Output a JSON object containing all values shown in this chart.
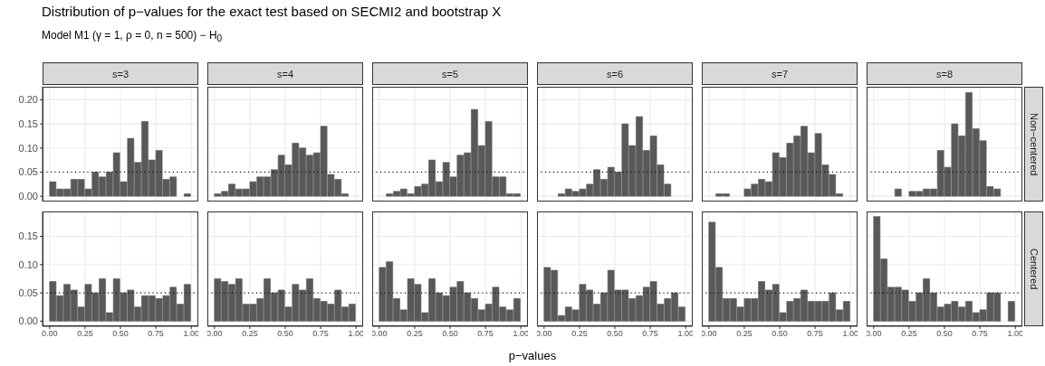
{
  "chart_data": [
    {
      "type": "other",
      "title": "Distribution of p−values for the exact test based on SECMI2 and bootstrap X",
      "subtitle": "Model M1 (γ = 1, ρ = 0, n = 500) − H$_{0}$"
    },
    {
      "type": "histogram",
      "title": "s=3",
      "tick_labels": "y",
      "bins": [
        0,
        0.05,
        0.1,
        0.15,
        0.2,
        0.25,
        0.3,
        0.35,
        0.4,
        0.45,
        0.5,
        0.55,
        0.6,
        0.65,
        0.7,
        0.75,
        0.8,
        0.85,
        0.9,
        0.95,
        1
      ],
      "values": [
        0.03,
        0.015,
        0.015,
        0.035,
        0.035,
        0.015,
        0.05,
        0.04,
        0.05,
        0.09,
        0.03,
        0.12,
        0.07,
        0.155,
        0.075,
        0.095,
        0.035,
        0.04,
        0,
        0.005
      ],
      "color": "#595959",
      "xlim": [
        -0.05,
        1.05
      ],
      "xticks": [
        0,
        0.25,
        0.5,
        0.75,
        1
      ],
      "ylim": [
        -0.011,
        0.227
      ],
      "yticks": [
        {
          "value": 0,
          "label": "0.00"
        },
        {
          "value": 0.05,
          "label": "0.05"
        },
        {
          "value": 0.1,
          "label": "0.10"
        },
        {
          "value": 0.15,
          "label": "0.15"
        },
        {
          "value": 0.2,
          "label": "0.20"
        }
      ],
      "grid": true,
      "ref_lines": [
        {
          "axis": "y",
          "value": 0.05,
          "line_style": "dotted",
          "color": "#000000"
        }
      ]
    },
    {
      "type": "histogram",
      "title": "s=4",
      "tick_labels": false,
      "bins": [
        0,
        0.05,
        0.1,
        0.15,
        0.2,
        0.25,
        0.3,
        0.35,
        0.4,
        0.45,
        0.5,
        0.55,
        0.6,
        0.65,
        0.7,
        0.75,
        0.8,
        0.85,
        0.9,
        0.95,
        1
      ],
      "values": [
        0.005,
        0.01,
        0.025,
        0.015,
        0.015,
        0.03,
        0.04,
        0.04,
        0.055,
        0.085,
        0.065,
        0.11,
        0.1,
        0.085,
        0.09,
        0.145,
        0.045,
        0.035,
        0.005,
        0
      ],
      "color": "#595959",
      "xlim": [
        -0.05,
        1.05
      ],
      "xticks": [
        0,
        0.25,
        0.5,
        0.75,
        1
      ],
      "ylim": [
        -0.011,
        0.227
      ],
      "yticks": [
        0,
        0.05,
        0.1,
        0.15,
        0.2
      ],
      "grid": true,
      "ref_lines": [
        {
          "axis": "y",
          "value": 0.05,
          "line_style": "dotted",
          "color": "#000000"
        }
      ]
    },
    {
      "type": "histogram",
      "title": "s=5",
      "tick_labels": false,
      "bins": [
        0,
        0.05,
        0.1,
        0.15,
        0.2,
        0.25,
        0.3,
        0.35,
        0.4,
        0.45,
        0.5,
        0.55,
        0.6,
        0.65,
        0.7,
        0.75,
        0.8,
        0.85,
        0.9,
        0.95,
        1
      ],
      "values": [
        0,
        0.005,
        0.01,
        0.015,
        0.005,
        0.02,
        0.025,
        0.075,
        0.03,
        0.07,
        0.04,
        0.085,
        0.09,
        0.18,
        0.105,
        0.155,
        0.04,
        0.04,
        0.005,
        0.005
      ],
      "color": "#595959",
      "xlim": [
        -0.05,
        1.05
      ],
      "xticks": [
        0,
        0.25,
        0.5,
        0.75,
        1
      ],
      "ylim": [
        -0.011,
        0.227
      ],
      "yticks": [
        0,
        0.05,
        0.1,
        0.15,
        0.2
      ],
      "grid": true,
      "ref_lines": [
        {
          "axis": "y",
          "value": 0.05,
          "line_style": "dotted",
          "color": "#000000"
        }
      ]
    },
    {
      "type": "histogram",
      "title": "s=6",
      "tick_labels": false,
      "bins": [
        0,
        0.05,
        0.1,
        0.15,
        0.2,
        0.25,
        0.3,
        0.35,
        0.4,
        0.45,
        0.5,
        0.55,
        0.6,
        0.65,
        0.7,
        0.75,
        0.8,
        0.85,
        0.9,
        0.95,
        1
      ],
      "values": [
        0,
        0,
        0.005,
        0.015,
        0.01,
        0.015,
        0.025,
        0.055,
        0.035,
        0.06,
        0.05,
        0.15,
        0.105,
        0.165,
        0.095,
        0.125,
        0.065,
        0.025,
        0,
        0
      ],
      "color": "#595959",
      "xlim": [
        -0.05,
        1.05
      ],
      "xticks": [
        0,
        0.25,
        0.5,
        0.75,
        1
      ],
      "ylim": [
        -0.011,
        0.227
      ],
      "yticks": [
        0,
        0.05,
        0.1,
        0.15,
        0.2
      ],
      "grid": true,
      "ref_lines": [
        {
          "axis": "y",
          "value": 0.05,
          "line_style": "dotted",
          "color": "#000000"
        }
      ]
    },
    {
      "type": "histogram",
      "title": "s=7",
      "tick_labels": false,
      "bins": [
        0,
        0.05,
        0.1,
        0.15,
        0.2,
        0.25,
        0.3,
        0.35,
        0.4,
        0.45,
        0.5,
        0.55,
        0.6,
        0.65,
        0.7,
        0.75,
        0.8,
        0.85,
        0.9,
        0.95,
        1
      ],
      "values": [
        0,
        0.005,
        0.005,
        0,
        0,
        0.015,
        0.025,
        0.035,
        0.03,
        0.09,
        0.08,
        0.11,
        0.125,
        0.145,
        0.09,
        0.13,
        0.065,
        0.045,
        0.005,
        0
      ],
      "color": "#595959",
      "xlim": [
        -0.05,
        1.05
      ],
      "xticks": [
        0,
        0.25,
        0.5,
        0.75,
        1
      ],
      "ylim": [
        -0.011,
        0.227
      ],
      "yticks": [
        0,
        0.05,
        0.1,
        0.15,
        0.2
      ],
      "grid": true,
      "ref_lines": [
        {
          "axis": "y",
          "value": 0.05,
          "line_style": "dotted",
          "color": "#000000"
        }
      ]
    },
    {
      "type": "histogram",
      "title": "s=8",
      "y2label": "Non−centered",
      "tick_labels": false,
      "bins": [
        0,
        0.05,
        0.1,
        0.15,
        0.2,
        0.25,
        0.3,
        0.35,
        0.4,
        0.45,
        0.5,
        0.55,
        0.6,
        0.65,
        0.7,
        0.75,
        0.8,
        0.85,
        0.9,
        0.95,
        1
      ],
      "values": [
        0,
        0,
        0,
        0.015,
        0,
        0.01,
        0.01,
        0.015,
        0.015,
        0.095,
        0.06,
        0.15,
        0.125,
        0.215,
        0.14,
        0.115,
        0.02,
        0.015,
        0,
        0
      ],
      "color": "#595959",
      "xlim": [
        -0.05,
        1.05
      ],
      "xticks": [
        0,
        0.25,
        0.5,
        0.75,
        1
      ],
      "ylim": [
        -0.011,
        0.227
      ],
      "yticks": [
        0,
        0.05,
        0.1,
        0.15,
        0.2
      ],
      "grid": true,
      "ref_lines": [
        {
          "axis": "y",
          "value": 0.05,
          "line_style": "dotted",
          "color": "#000000"
        }
      ]
    },
    {
      "type": "histogram",
      "bins": [
        0,
        0.05,
        0.1,
        0.15,
        0.2,
        0.25,
        0.3,
        0.35,
        0.4,
        0.45,
        0.5,
        0.55,
        0.6,
        0.65,
        0.7,
        0.75,
        0.8,
        0.85,
        0.9,
        0.95,
        1
      ],
      "values": [
        0.07,
        0.045,
        0.065,
        0.055,
        0.025,
        0.065,
        0.05,
        0.075,
        0.015,
        0.075,
        0.05,
        0.055,
        0.025,
        0.045,
        0.045,
        0.04,
        0.045,
        0.06,
        0.03,
        0.065
      ],
      "color": "#595959",
      "xlim": [
        -0.05,
        1.05
      ],
      "xticks": [
        {
          "value": 0,
          "label": "0.00"
        },
        {
          "value": 0.25,
          "label": "0.25"
        },
        {
          "value": 0.5,
          "label": "0.50"
        },
        {
          "value": 0.75,
          "label": "0.75"
        },
        {
          "value": 1,
          "label": "1.00"
        }
      ],
      "ylim": [
        -0.009,
        0.194
      ],
      "yticks": [
        {
          "value": 0,
          "label": "0.00"
        },
        {
          "value": 0.05,
          "label": "0.05"
        },
        {
          "value": 0.1,
          "label": "0.10"
        },
        {
          "value": 0.15,
          "label": "0.15"
        }
      ],
      "grid": true,
      "ref_lines": [
        {
          "axis": "y",
          "value": 0.05,
          "line_style": "dotted",
          "color": "#000000"
        }
      ]
    },
    {
      "type": "histogram",
      "tick_labels": "x",
      "bins": [
        0,
        0.05,
        0.1,
        0.15,
        0.2,
        0.25,
        0.3,
        0.35,
        0.4,
        0.45,
        0.5,
        0.55,
        0.6,
        0.65,
        0.7,
        0.75,
        0.8,
        0.85,
        0.9,
        0.95,
        1
      ],
      "values": [
        0.075,
        0.07,
        0.065,
        0.075,
        0.03,
        0.03,
        0.04,
        0.075,
        0.05,
        0.055,
        0.025,
        0.065,
        0.055,
        0.075,
        0.04,
        0.035,
        0.03,
        0.055,
        0.025,
        0.03
      ],
      "color": "#595959",
      "xlim": [
        -0.05,
        1.05
      ],
      "xticks": [
        {
          "value": 0,
          "label": "0.00"
        },
        {
          "value": 0.25,
          "label": "0.25"
        },
        {
          "value": 0.5,
          "label": "0.50"
        },
        {
          "value": 0.75,
          "label": "0.75"
        },
        {
          "value": 1,
          "label": "1.00"
        }
      ],
      "ylim": [
        -0.009,
        0.194
      ],
      "yticks": [
        0,
        0.05,
        0.1,
        0.15
      ],
      "grid": true,
      "ref_lines": [
        {
          "axis": "y",
          "value": 0.05,
          "line_style": "dotted",
          "color": "#000000"
        }
      ]
    },
    {
      "type": "histogram",
      "xlabel": "p−values",
      "tick_labels": "x",
      "bins": [
        0,
        0.05,
        0.1,
        0.15,
        0.2,
        0.25,
        0.3,
        0.35,
        0.4,
        0.45,
        0.5,
        0.55,
        0.6,
        0.65,
        0.7,
        0.75,
        0.8,
        0.85,
        0.9,
        0.95,
        1
      ],
      "values": [
        0.095,
        0.105,
        0.04,
        0.02,
        0.075,
        0.065,
        0.015,
        0.075,
        0.05,
        0.045,
        0.06,
        0.07,
        0.05,
        0.04,
        0.02,
        0.03,
        0.06,
        0.025,
        0.02,
        0.04
      ],
      "color": "#595959",
      "xlim": [
        -0.05,
        1.05
      ],
      "xticks": [
        {
          "value": 0,
          "label": "0.00"
        },
        {
          "value": 0.25,
          "label": "0.25"
        },
        {
          "value": 0.5,
          "label": "0.50"
        },
        {
          "value": 0.75,
          "label": "0.75"
        },
        {
          "value": 1,
          "label": "1.00"
        }
      ],
      "ylim": [
        -0.009,
        0.194
      ],
      "yticks": [
        0,
        0.05,
        0.1,
        0.15
      ],
      "grid": true,
      "ref_lines": [
        {
          "axis": "y",
          "value": 0.05,
          "line_style": "dotted",
          "color": "#000000"
        }
      ]
    },
    {
      "type": "histogram",
      "tick_labels": "x",
      "bins": [
        0,
        0.05,
        0.1,
        0.15,
        0.2,
        0.25,
        0.3,
        0.35,
        0.4,
        0.45,
        0.5,
        0.55,
        0.6,
        0.65,
        0.7,
        0.75,
        0.8,
        0.85,
        0.9,
        0.95,
        1
      ],
      "values": [
        0.095,
        0.09,
        0.01,
        0.025,
        0.02,
        0.065,
        0.055,
        0.03,
        0.05,
        0.09,
        0.055,
        0.055,
        0.04,
        0.045,
        0.06,
        0.07,
        0.03,
        0.04,
        0.05,
        0.025
      ],
      "color": "#595959",
      "xlim": [
        -0.05,
        1.05
      ],
      "xticks": [
        {
          "value": 0,
          "label": "0.00"
        },
        {
          "value": 0.25,
          "label": "0.25"
        },
        {
          "value": 0.5,
          "label": "0.50"
        },
        {
          "value": 0.75,
          "label": "0.75"
        },
        {
          "value": 1,
          "label": "1.00"
        }
      ],
      "ylim": [
        -0.009,
        0.194
      ],
      "yticks": [
        0,
        0.05,
        0.1,
        0.15
      ],
      "grid": true,
      "ref_lines": [
        {
          "axis": "y",
          "value": 0.05,
          "line_style": "dotted",
          "color": "#000000"
        }
      ]
    },
    {
      "type": "histogram",
      "tick_labels": "x",
      "bins": [
        0,
        0.05,
        0.1,
        0.15,
        0.2,
        0.25,
        0.3,
        0.35,
        0.4,
        0.45,
        0.5,
        0.55,
        0.6,
        0.65,
        0.7,
        0.75,
        0.8,
        0.85,
        0.9,
        0.95,
        1
      ],
      "values": [
        0.175,
        0.095,
        0.04,
        0.04,
        0.025,
        0.04,
        0.04,
        0.07,
        0.055,
        0.065,
        0.015,
        0.035,
        0.04,
        0.055,
        0.035,
        0.035,
        0.035,
        0.05,
        0.02,
        0.035
      ],
      "color": "#595959",
      "xlim": [
        -0.05,
        1.05
      ],
      "xticks": [
        {
          "value": 0,
          "label": "0.00"
        },
        {
          "value": 0.25,
          "label": "0.25"
        },
        {
          "value": 0.5,
          "label": "0.50"
        },
        {
          "value": 0.75,
          "label": "0.75"
        },
        {
          "value": 1,
          "label": "1.00"
        }
      ],
      "ylim": [
        -0.009,
        0.194
      ],
      "yticks": [
        0,
        0.05,
        0.1,
        0.15
      ],
      "grid": true,
      "ref_lines": [
        {
          "axis": "y",
          "value": 0.05,
          "line_style": "dotted",
          "color": "#000000"
        }
      ]
    },
    {
      "type": "histogram",
      "y2label": "Centered",
      "tick_labels": "x",
      "bins": [
        0,
        0.05,
        0.1,
        0.15,
        0.2,
        0.25,
        0.3,
        0.35,
        0.4,
        0.45,
        0.5,
        0.55,
        0.6,
        0.65,
        0.7,
        0.75,
        0.8,
        0.85,
        0.9,
        0.95,
        1
      ],
      "values": [
        0.185,
        0.11,
        0.06,
        0.06,
        0.055,
        0.035,
        0.05,
        0.075,
        0.05,
        0.025,
        0.03,
        0.035,
        0.025,
        0.035,
        0.015,
        0.02,
        0.05,
        0.05,
        0,
        0.035
      ],
      "color": "#595959",
      "xlim": [
        -0.05,
        1.05
      ],
      "xticks": [
        {
          "value": 0,
          "label": "0.00"
        },
        {
          "value": 0.25,
          "label": "0.25"
        },
        {
          "value": 0.5,
          "label": "0.50"
        },
        {
          "value": 0.75,
          "label": "0.75"
        },
        {
          "value": 1,
          "label": "1.00"
        }
      ],
      "ylim": [
        -0.009,
        0.194
      ],
      "yticks": [
        0,
        0.05,
        0.1,
        0.15
      ],
      "grid": true,
      "ref_lines": [
        {
          "axis": "y",
          "value": 0.05,
          "line_style": "dotted",
          "color": "#000000"
        }
      ]
    }
  ]
}
